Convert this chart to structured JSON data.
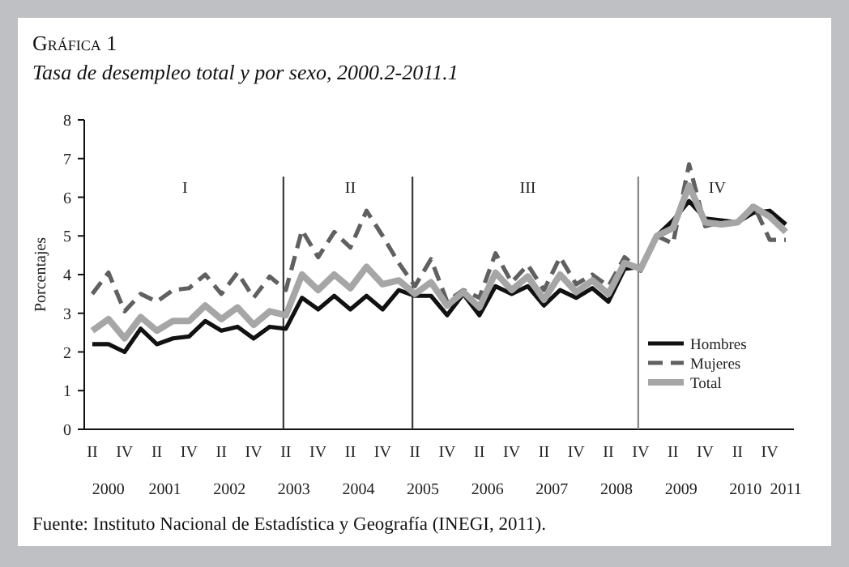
{
  "chart_data": {
    "type": "line",
    "title": "Gráfica 1",
    "subtitle": "Tasa de desempleo total y por sexo, 2000.2-2011.1",
    "ylabel": "Porcentajes",
    "categories": [
      "II",
      null,
      "IV",
      null,
      "II",
      null,
      "IV",
      null,
      "II",
      null,
      "IV",
      null,
      "II",
      null,
      "IV",
      null,
      "II",
      null,
      "IV",
      null,
      "II",
      null,
      "IV",
      null,
      "II",
      null,
      "IV",
      null,
      "II",
      null,
      "IV",
      null,
      "II",
      null,
      "IV",
      null,
      "II",
      null,
      "IV",
      null,
      "II",
      null,
      "IV",
      null
    ],
    "ylim": [
      0,
      8
    ],
    "yticks": [
      0,
      1,
      2,
      3,
      4,
      5,
      6,
      7,
      8
    ],
    "grid": false,
    "legend": "bottom right",
    "marker": "none",
    "series": [
      {
        "name": "Hombres",
        "color": "#111111",
        "line_style": "solid",
        "values": [
          2.2,
          2.2,
          2.0,
          2.6,
          2.2,
          2.35,
          2.4,
          2.8,
          2.55,
          2.65,
          2.35,
          2.65,
          2.6,
          3.4,
          3.1,
          3.45,
          3.1,
          3.45,
          3.1,
          3.6,
          3.45,
          3.45,
          2.95,
          3.5,
          2.95,
          3.7,
          3.5,
          3.7,
          3.2,
          3.6,
          3.4,
          3.65,
          3.3,
          4.15,
          4.2,
          5.0,
          5.4,
          5.9,
          5.45,
          5.4,
          5.35,
          5.6,
          5.65,
          5.3
        ]
      },
      {
        "name": "Mujeres",
        "color": "#606060",
        "line_style": "dashed",
        "values": [
          3.5,
          4.05,
          3.05,
          3.5,
          3.3,
          3.6,
          3.65,
          4.0,
          3.5,
          4.05,
          3.4,
          3.95,
          3.6,
          5.15,
          4.45,
          5.1,
          4.7,
          5.65,
          5.0,
          4.3,
          3.7,
          4.4,
          3.3,
          3.6,
          3.4,
          4.55,
          3.8,
          4.25,
          3.6,
          4.45,
          3.75,
          4.0,
          3.7,
          4.45,
          4.1,
          5.0,
          4.8,
          6.85,
          5.25,
          5.35,
          5.35,
          5.8,
          4.9,
          4.9
        ]
      },
      {
        "name": "Total",
        "color": "#a6a6a6",
        "line_style": "solid",
        "values": [
          2.55,
          2.85,
          2.35,
          2.9,
          2.55,
          2.8,
          2.8,
          3.2,
          2.85,
          3.15,
          2.7,
          3.05,
          2.95,
          4.0,
          3.6,
          4.0,
          3.65,
          4.2,
          3.75,
          3.85,
          3.5,
          3.8,
          3.2,
          3.55,
          3.15,
          4.05,
          3.6,
          3.95,
          3.35,
          4.0,
          3.55,
          3.85,
          3.5,
          4.3,
          4.15,
          5.0,
          5.2,
          6.3,
          5.35,
          5.3,
          5.35,
          5.75,
          5.5,
          5.1
        ]
      }
    ],
    "annotations": [
      "I",
      "II",
      "III",
      "IV",
      "2000",
      "2001",
      "2002",
      "2003",
      "2004",
      "2005",
      "2006",
      "2007",
      "2008",
      "2009",
      "2010",
      "2011",
      "Fuente: Instituto Nacional de Estadística y Geografía (INEGI, 2011)."
    ]
  }
}
